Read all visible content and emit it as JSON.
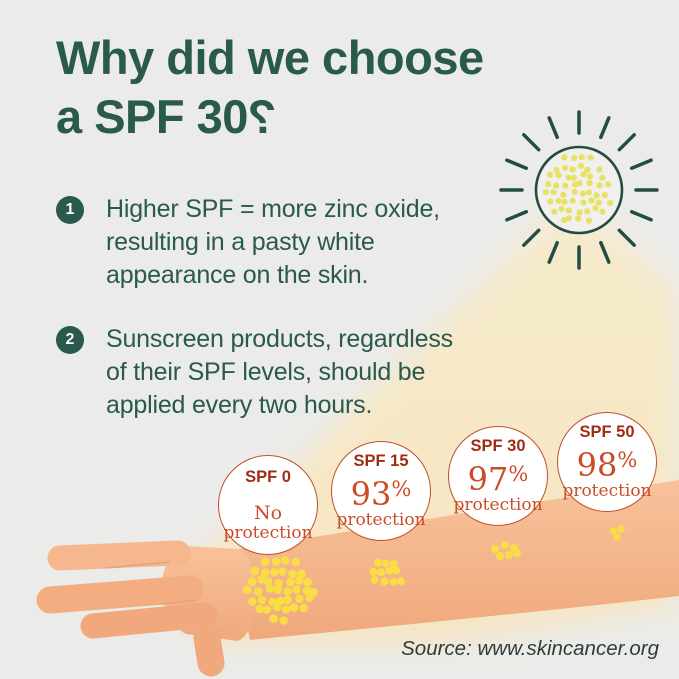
{
  "title": {
    "line1": "Why did we choose",
    "line2": "a SPF 30",
    "qmark": "?"
  },
  "points": [
    {
      "number": "1",
      "lines": [
        "Higher SPF = more zinc oxide,",
        "resulting in a pasty white",
        "appearance on the skin."
      ]
    },
    {
      "number": "2",
      "lines": [
        "Sunscreen products, regardless",
        "of their SPF levels, should be",
        "applied every two hours."
      ]
    }
  ],
  "bubbles": [
    {
      "label": "SPF 0",
      "value": "No",
      "pct": "",
      "sub": "protection"
    },
    {
      "label": "SPF 15",
      "value": "93",
      "pct": "%",
      "sub": "protection"
    },
    {
      "label": "SPF 30",
      "value": "97",
      "pct": "%",
      "sub": "protection"
    },
    {
      "label": "SPF 50",
      "value": "98",
      "pct": "%",
      "sub": "protection"
    }
  ],
  "source": "Source: www.skincancer.org",
  "art": {
    "background": "#ebebe9",
    "teal": "#2a594e",
    "sun_outline": "#234d44",
    "sun_fill": "#f1f0ec",
    "sun_dot": "#e7e165",
    "beam_top": "#f6ecca",
    "beam_bottom": "#f8e4bf",
    "skin_light": "#f8c29b",
    "skin_dark": "#f0a87c",
    "finger_1": "#f6b78e",
    "finger_2": "#f3ad81",
    "finger_3": "#f1a87c",
    "crease": "#dfa07a",
    "skin_dot": "#f8dd45",
    "bubble_border": "#c0512e",
    "bubble_label_color": "#9e2d11",
    "bubble_value_color": "#cb4b24"
  }
}
